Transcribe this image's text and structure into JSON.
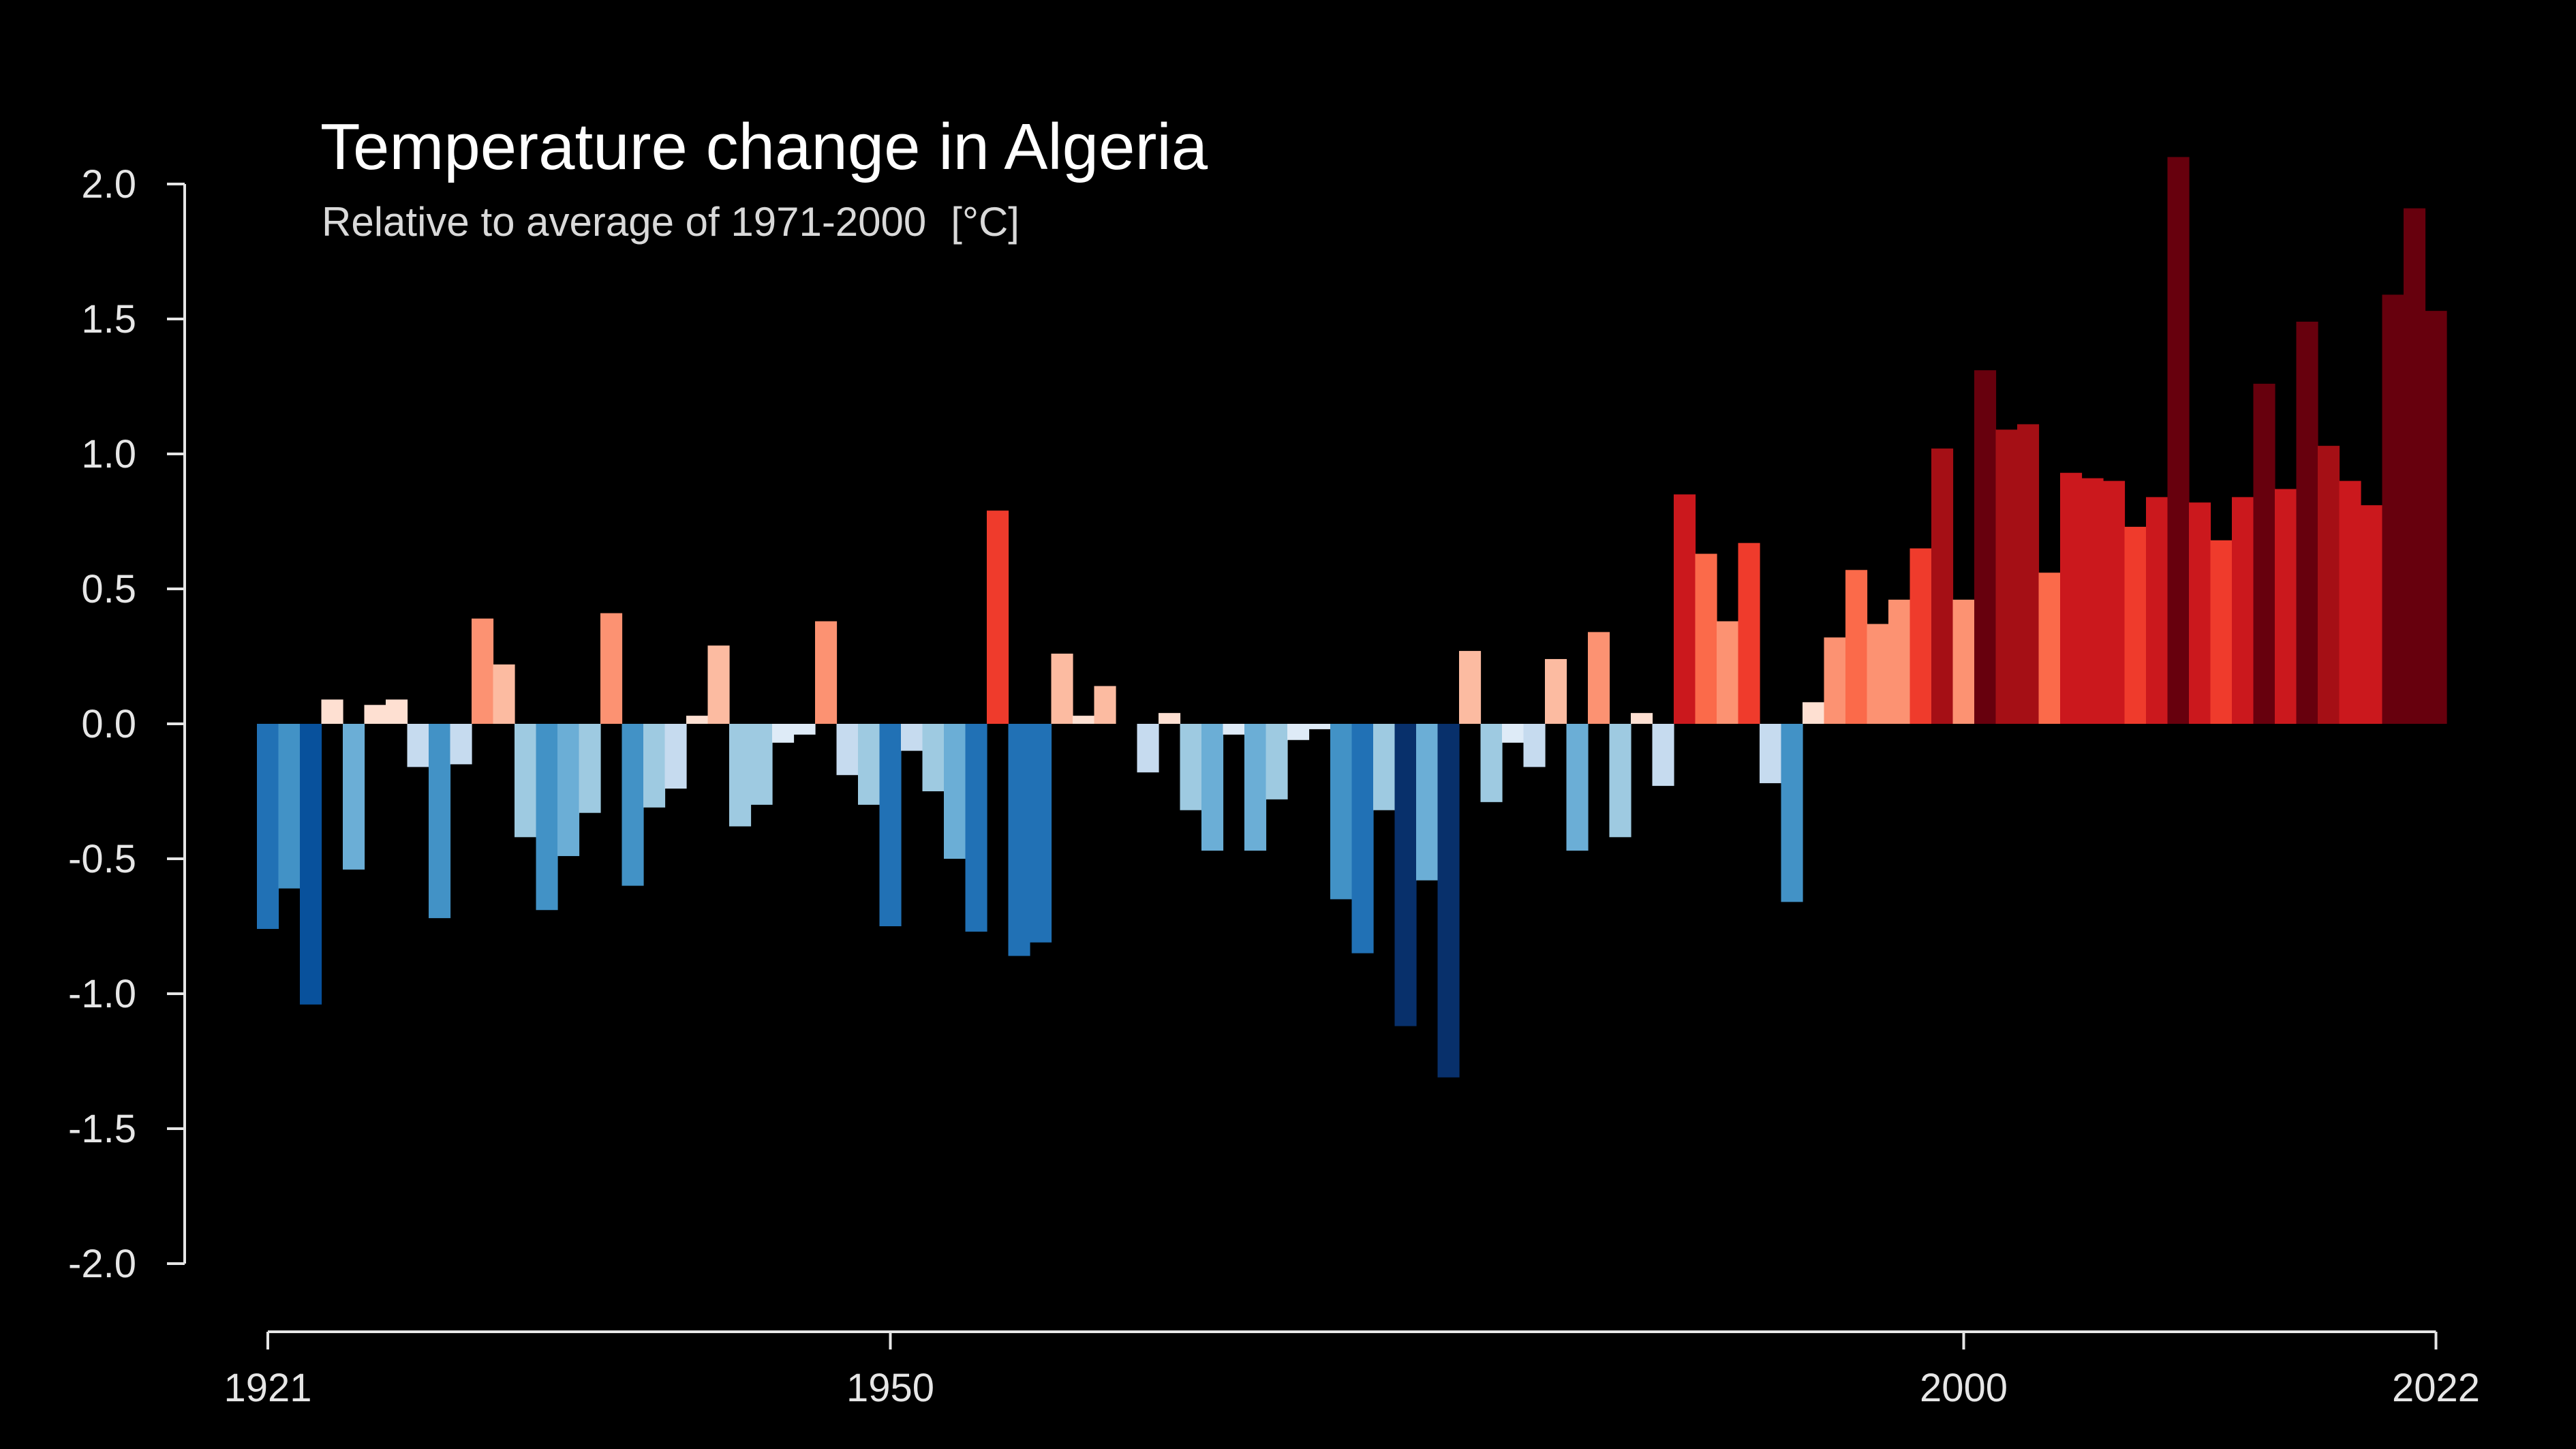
{
  "chart_data": {
    "type": "bar",
    "title": "Temperature change in Algeria",
    "subtitle": "Relative to average of 1971-2000",
    "unit": "[°C]",
    "xlabel": "",
    "ylabel": "",
    "ylim": [
      -2.0,
      2.0
    ],
    "yticks": [
      "2.0",
      "1.5",
      "1.0",
      "0.5",
      "0.0",
      "-0.5",
      "-1.0",
      "-1.5",
      "-2.0"
    ],
    "xticks": [
      "1921",
      "1950",
      "2000",
      "2022"
    ],
    "grid": false,
    "legend": "none",
    "background_color": "#000000",
    "axis_color": "#e6e6e6",
    "color_scale": [
      "#08306b",
      "#08519c",
      "#2171b5",
      "#4292c6",
      "#6baed6",
      "#9ecae1",
      "#c6dbef",
      "#deebf7",
      "#fee0d2",
      "#fcbba1",
      "#fc9272",
      "#fb6a4a",
      "#ef3b2c",
      "#cb181d",
      "#a50f15",
      "#67000d"
    ],
    "start_year": 1921,
    "end_year": 2022,
    "values": [
      -0.76,
      -0.61,
      -1.04,
      0.09,
      -0.54,
      0.07,
      0.09,
      -0.16,
      -0.72,
      -0.15,
      0.39,
      0.22,
      -0.42,
      -0.69,
      -0.49,
      -0.33,
      0.41,
      -0.6,
      -0.31,
      -0.24,
      0.03,
      0.29,
      -0.38,
      -0.3,
      -0.07,
      -0.04,
      0.38,
      -0.19,
      -0.3,
      -0.75,
      -0.1,
      -0.25,
      -0.5,
      -0.77,
      0.79,
      -0.86,
      -0.81,
      0.26,
      0.03,
      0.14,
      0.0,
      -0.18,
      0.04,
      -0.32,
      -0.47,
      -0.04,
      -0.47,
      -0.28,
      -0.06,
      -0.02,
      -0.65,
      -0.85,
      -0.32,
      -1.12,
      -0.58,
      -1.31,
      0.27,
      -0.29,
      -0.07,
      -0.16,
      0.24,
      -0.47,
      0.34,
      -0.42,
      0.04,
      -0.23,
      0.85,
      0.63,
      0.38,
      0.67,
      -0.22,
      -0.66,
      0.08,
      0.32,
      0.57,
      0.37,
      0.46,
      0.65,
      1.02,
      0.46,
      1.31,
      1.09,
      1.11,
      0.56,
      0.93,
      0.91,
      0.9,
      0.73,
      0.84,
      2.1,
      0.82,
      0.68,
      0.84,
      1.26,
      0.87,
      1.49,
      1.03,
      0.9,
      0.81,
      1.59,
      1.91,
      1.53
    ]
  }
}
